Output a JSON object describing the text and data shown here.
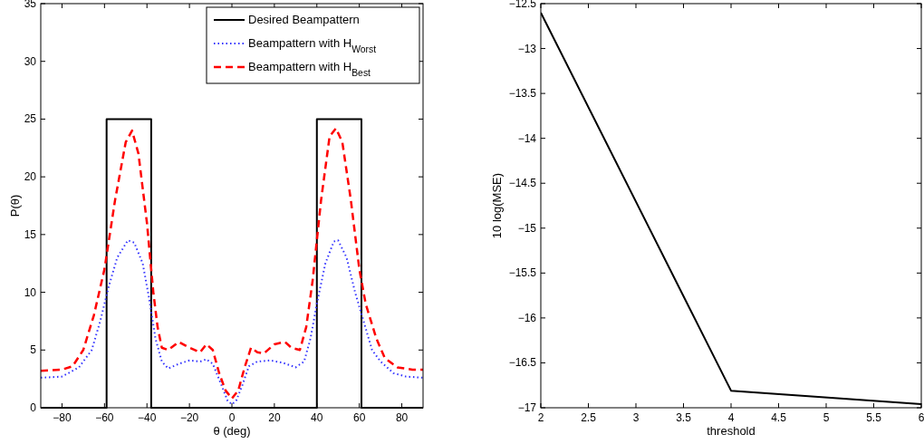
{
  "chart_data": [
    {
      "type": "line",
      "xlabel": "θ (deg)",
      "ylabel": "P(θ)",
      "xlim": [
        -90,
        90
      ],
      "ylim": [
        0,
        35
      ],
      "xticks": [
        {
          "value": -80,
          "label": "−80"
        },
        {
          "value": -60,
          "label": "−60"
        },
        {
          "value": -40,
          "label": "−40"
        },
        {
          "value": -20,
          "label": "−20"
        },
        0,
        20,
        40,
        60,
        80
      ],
      "yticks": [
        0,
        5,
        10,
        15,
        20,
        25,
        30,
        35
      ],
      "legend": "top right",
      "series": [
        {
          "name": "Desired Beampattern",
          "color": "#000000",
          "line_style": "solid",
          "x": [
            -90,
            -59,
            -59,
            -38,
            -38,
            40,
            40,
            61,
            61,
            90
          ],
          "values": [
            0,
            0,
            25,
            25,
            0,
            0,
            25,
            25,
            0,
            0
          ]
        },
        {
          "name": "Beampattern with H$_{Worst}$",
          "color": "#3333ff",
          "line_style": "dotted",
          "x": [
            -90,
            -80,
            -72,
            -66,
            -62,
            -58,
            -54,
            -49,
            -46,
            -42,
            -39,
            -36,
            -33,
            -30,
            -25,
            -20,
            -15,
            -12,
            -9,
            -5,
            -2,
            0,
            2,
            5,
            8,
            12,
            18,
            24,
            30,
            34,
            37,
            40,
            44,
            48,
            50,
            54,
            58,
            62,
            66,
            70,
            76,
            82,
            90
          ],
          "values": [
            2.6,
            2.7,
            3.5,
            5,
            7.5,
            10.5,
            13,
            14.5,
            14.3,
            12.5,
            9.5,
            6,
            4,
            3.4,
            3.8,
            4.1,
            4,
            4.2,
            3.8,
            2,
            0.6,
            0.3,
            0.6,
            2,
            3.6,
            4,
            4.1,
            3.9,
            3.5,
            4,
            6,
            9,
            12.5,
            14.4,
            14.5,
            13,
            10,
            7.5,
            5,
            4,
            3,
            2.7,
            2.6
          ]
        },
        {
          "name": "Beampattern with H$_{Best}$",
          "color": "#ff0000",
          "line_style": "dashed",
          "x": [
            -90,
            -80,
            -75,
            -70,
            -65,
            -60,
            -55,
            -50,
            -47,
            -44,
            -40,
            -37,
            -35,
            -33,
            -30,
            -25,
            -20,
            -15,
            -12,
            -9,
            -6,
            -3,
            0,
            3,
            6,
            9,
            12,
            15,
            20,
            25,
            28,
            32,
            35,
            38,
            42,
            46,
            49,
            52,
            56,
            60,
            63,
            68,
            72,
            78,
            85,
            90
          ],
          "values": [
            3.2,
            3.3,
            3.6,
            5,
            8,
            12,
            18,
            23,
            24,
            22,
            16,
            10,
            7,
            5.2,
            5,
            5.7,
            5.2,
            4.8,
            5.5,
            5,
            3,
            1.5,
            0.8,
            1.5,
            3.5,
            5.2,
            4.8,
            4.7,
            5.5,
            5.7,
            5.2,
            5,
            7,
            11,
            18,
            23.5,
            24.2,
            23,
            18,
            12,
            9,
            6,
            4.3,
            3.5,
            3.3,
            3.3
          ]
        }
      ]
    },
    {
      "type": "line",
      "xlabel": "threshold",
      "ylabel": "10 log(MSE)",
      "xlim": [
        2,
        6
      ],
      "ylim": [
        -17,
        -12.5
      ],
      "xticks": [
        2,
        2.5,
        3,
        3.5,
        4,
        4.5,
        5,
        5.5,
        6
      ],
      "yticks": [
        {
          "value": -17,
          "label": "−17"
        },
        {
          "value": -16.5,
          "label": "−16.5"
        },
        {
          "value": -16,
          "label": "−16"
        },
        {
          "value": -15.5,
          "label": "−15.5"
        },
        {
          "value": -15,
          "label": "−15"
        },
        {
          "value": -14.5,
          "label": "−14.5"
        },
        {
          "value": -14,
          "label": "−14"
        },
        {
          "value": -13.5,
          "label": "−13.5"
        },
        {
          "value": -13,
          "label": "−13"
        },
        {
          "value": -12.5,
          "label": "−12.5"
        }
      ],
      "series": [
        {
          "color": "#000000",
          "line_style": "solid",
          "x": [
            2,
            4,
            6
          ],
          "values": [
            -12.6,
            -16.81,
            -16.96
          ]
        }
      ]
    }
  ]
}
